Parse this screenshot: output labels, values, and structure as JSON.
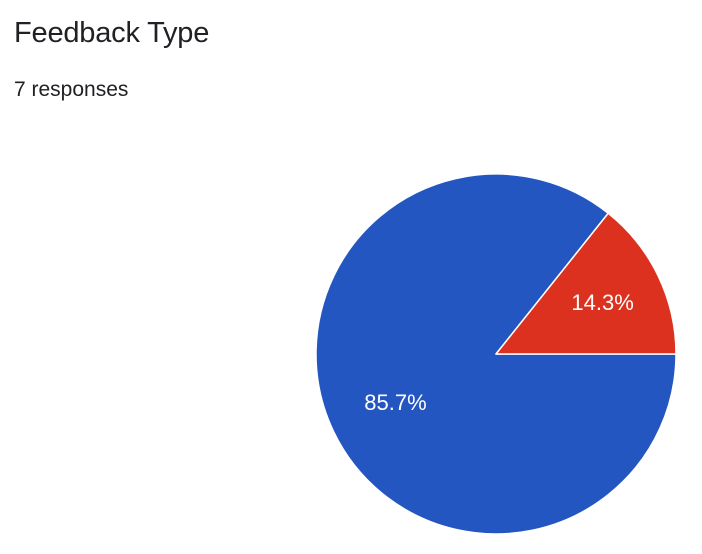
{
  "header": {
    "title": "Feedback Type",
    "subtitle": "7 responses"
  },
  "chart_data": {
    "type": "pie",
    "title": "Feedback Type",
    "subtitle": "7 responses",
    "total_responses": 7,
    "slices": [
      {
        "value": 6,
        "percent": 85.7,
        "label": "85.7%",
        "color": "#2356c1"
      },
      {
        "value": 1,
        "percent": 14.3,
        "label": "14.3%",
        "color": "#dc311e"
      }
    ],
    "legend": "none"
  }
}
